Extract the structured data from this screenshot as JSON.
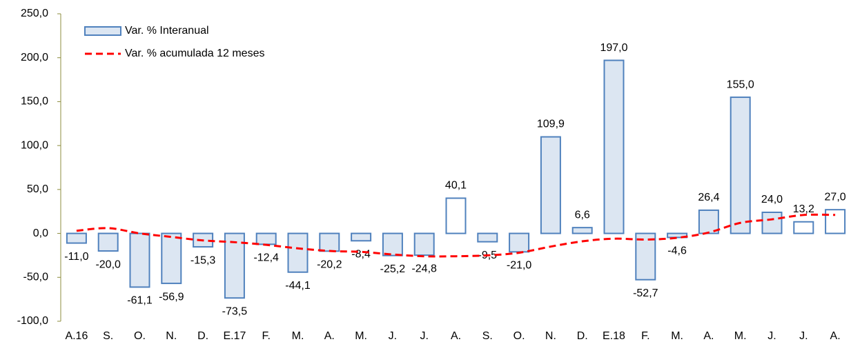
{
  "chart_data": {
    "type": "bar",
    "categories": [
      "A.16",
      "S.",
      "O.",
      "N.",
      "D.",
      "E.17",
      "F.",
      "M.",
      "A.",
      "M.",
      "J.",
      "J.",
      "A.",
      "S.",
      "O.",
      "N.",
      "D.",
      "E.18",
      "F.",
      "M.",
      "A.",
      "M.",
      "J.",
      "J.",
      "A."
    ],
    "series": [
      {
        "name": "Var. % Interanual",
        "type": "bar",
        "color": "#4f81bd",
        "bar_colors": [
          "#dce6f2",
          "#dce6f2",
          "#dce6f2",
          "#dce6f2",
          "#dce6f2",
          "#dce6f2",
          "#dce6f2",
          "#dce6f2",
          "#dce6f2",
          "#dce6f2",
          "#dce6f2",
          "#dce6f2",
          "#ffffff",
          "#dce6f2",
          "#dce6f2",
          "#dce6f2",
          "#dce6f2",
          "#dce6f2",
          "#dce6f2",
          "#dce6f2",
          "#dce6f2",
          "#dce6f2",
          "#dce6f2",
          "#ffffff",
          "#ffffff"
        ],
        "values": [
          -11.0,
          -20.0,
          -61.1,
          -56.9,
          -15.3,
          -73.5,
          -12.4,
          -44.1,
          -20.2,
          -8.4,
          -25.2,
          -24.8,
          40.1,
          -9.5,
          -21.0,
          109.9,
          6.6,
          197.0,
          -52.7,
          -4.6,
          26.4,
          155.0,
          24.0,
          13.2,
          27.0
        ],
        "value_labels": [
          "-11,0",
          "-20,0",
          "-61,1",
          "-56,9",
          "-15,3",
          "-73,5",
          "-12,4",
          "-44,1",
          "-20,2",
          "-8,4",
          "-25,2",
          "-24,8",
          "40,1",
          "-9,5",
          "-21,0",
          "109,9",
          "6,6",
          "197,0",
          "-52,7",
          "-4,6",
          "26,4",
          "155,0",
          "24,0",
          "13,2",
          "27,0"
        ]
      },
      {
        "name": "Var. % acumulada 12 meses",
        "type": "line",
        "color": "#ff0000",
        "dashed": true,
        "values": [
          3,
          6,
          0,
          -4,
          -8,
          -10,
          -13,
          -17,
          -20,
          -21,
          -24,
          -26,
          -26,
          -25,
          -22,
          -15,
          -9,
          -6,
          -7,
          -5,
          1,
          12,
          16,
          21,
          21
        ]
      }
    ],
    "ylim": [
      -100,
      250
    ],
    "yticks": [
      {
        "value": -100,
        "label": "-100,0"
      },
      {
        "value": -50,
        "label": "-50,0"
      },
      {
        "value": 0,
        "label": "0,0"
      },
      {
        "value": 50,
        "label": "50,0"
      },
      {
        "value": 100,
        "label": "100,0"
      },
      {
        "value": 150,
        "label": "150,0"
      },
      {
        "value": 200,
        "label": "200,0"
      },
      {
        "value": 250,
        "label": "250,0"
      }
    ],
    "axis_color": "#8c8c3c",
    "legend": "upper left"
  }
}
